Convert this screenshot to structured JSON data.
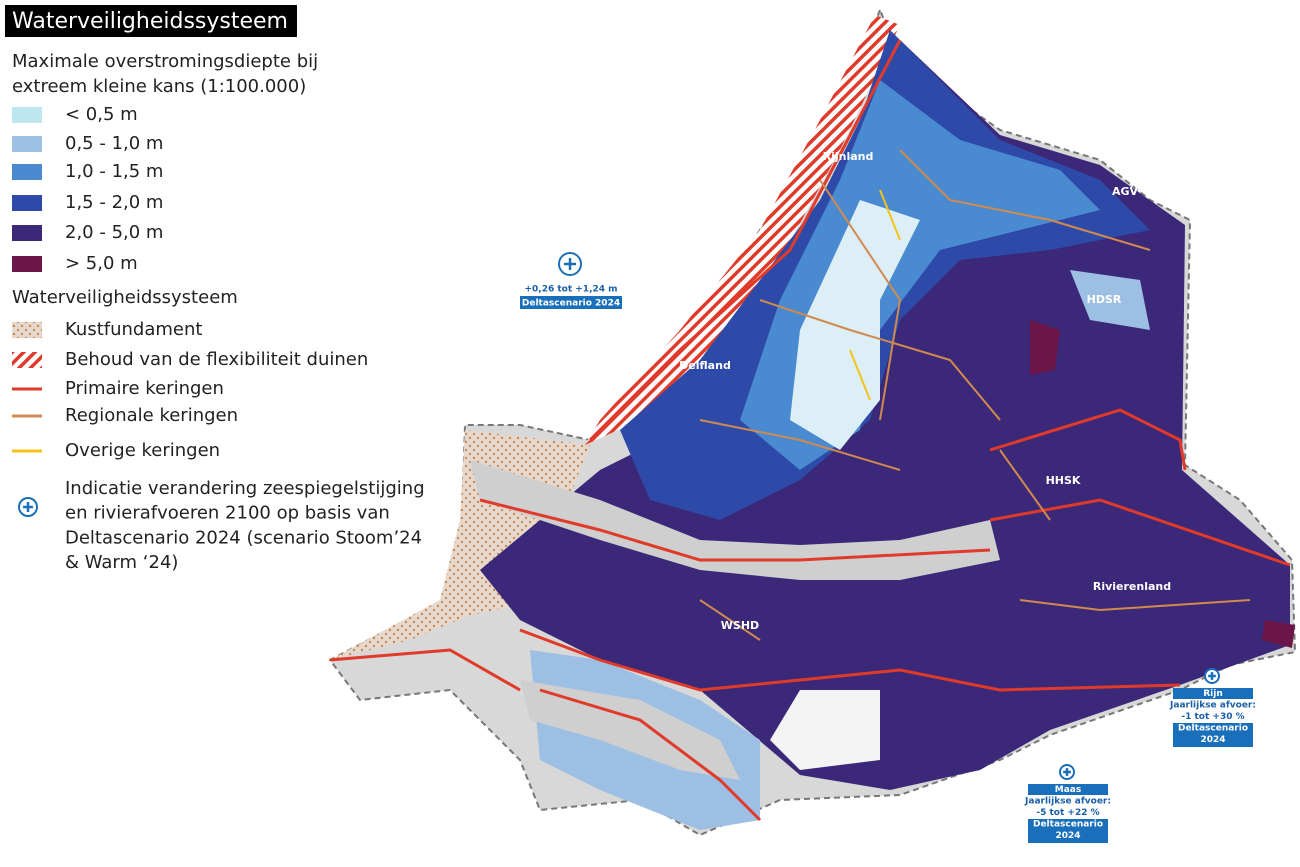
{
  "title": "Waterveiligheidssysteem",
  "legend": {
    "heading": [
      "Maximale overstromingsdiepte bij",
      "extreem kleine kans (1:100.000)"
    ],
    "depth_classes": [
      {
        "label": "< 0,5 m",
        "color": "#bde6ee"
      },
      {
        "label": "0,5 - 1,0 m",
        "color": "#9dbfe3"
      },
      {
        "label": "1,0 - 1,5 m",
        "color": "#4a8ad0"
      },
      {
        "label": "1,5 - 2,0 m",
        "color": "#2e4aa8"
      },
      {
        "label": "2,0 - 5,0 m",
        "color": "#3b2878"
      },
      {
        "label": "> 5,0 m",
        "color": "#6b1548"
      }
    ],
    "system_heading": "Waterveiligheidssysteem",
    "system_items": [
      {
        "label": "Kustfundament",
        "symbol": "dots"
      },
      {
        "label": "Behoud van de flexibiliteit duinen",
        "symbol": "hatch"
      },
      {
        "label": "Primaire keringen",
        "symbol": "line",
        "color": "#e03a2a"
      },
      {
        "label": "Regionale keringen",
        "symbol": "line",
        "color": "#d08a50"
      },
      {
        "label": "Overige keringen",
        "symbol": "line",
        "color": "#f5c31a"
      }
    ],
    "indicator": [
      "Indicatie verandering zeespiegelstijging",
      "en rivierafvoeren 2100 op basis van",
      "Deltascenario 2024 (scenario Stoom’24",
      "& Warm ‘24)"
    ]
  },
  "map": {
    "regions": [
      "Rijnland",
      "AGV",
      "HDSR",
      "Delfland",
      "HHSK",
      "Rivierenland",
      "WSHD"
    ],
    "callouts": [
      {
        "lines": [
          "+0,26 tot +1,24 m",
          "Deltascenario 2024"
        ]
      },
      {
        "lines": [
          "Rijn",
          "Jaarlijkse afvoer:",
          "-1 tot +30 %",
          "Deltascenario",
          "2024"
        ]
      },
      {
        "lines": [
          "Maas",
          "Jaarlijkse afvoer:",
          "-5 tot +22 %",
          "Deltascenario",
          "2024"
        ]
      }
    ]
  }
}
